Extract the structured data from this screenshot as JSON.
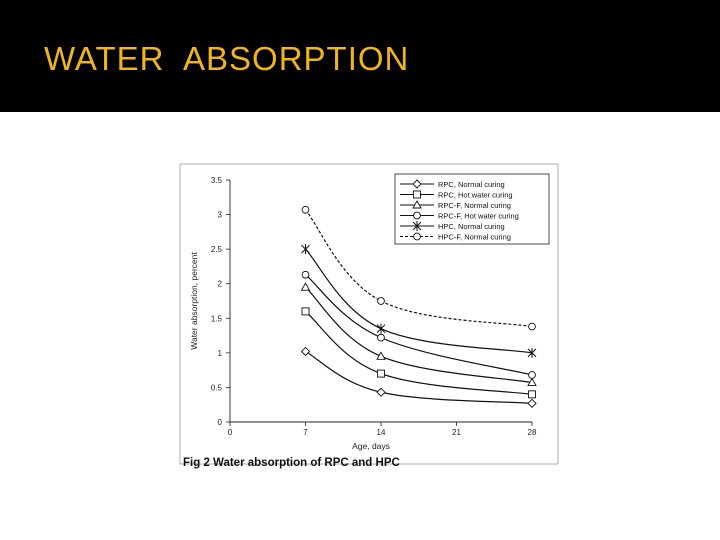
{
  "slide": {
    "title": "WATER  ABSORPTION",
    "title_color": "#f0b51b",
    "header_background": "#000000",
    "background": "#ffffff"
  },
  "figure": {
    "caption": "Fig 2 Water absorption of RPC and HPC"
  },
  "chart_data": {
    "type": "line",
    "title": "",
    "xlabel": "Age, days",
    "ylabel": "Water absorption, percent",
    "x": [
      7,
      14,
      28
    ],
    "xlim": [
      0,
      28
    ],
    "ylim": [
      0,
      3.5
    ],
    "xticks": [
      "0",
      "7",
      "14",
      "21",
      "28"
    ],
    "yticks": [
      "0",
      "0.5",
      "1",
      "1.5",
      "2",
      "2.5",
      "3",
      "3.5"
    ],
    "grid": false,
    "legend_position": "top-right",
    "series": [
      {
        "name": "RPC, Normal curing",
        "marker": "diamond",
        "dashed": false,
        "values": [
          1.02,
          0.43,
          0.27
        ]
      },
      {
        "name": "RPC, Hot water curing",
        "marker": "square",
        "dashed": false,
        "values": [
          1.6,
          0.7,
          0.4
        ]
      },
      {
        "name": "RPC-F, Normal curing",
        "marker": "triangle",
        "dashed": false,
        "values": [
          1.95,
          0.95,
          0.57
        ]
      },
      {
        "name": "RPC-F, Hot water curing",
        "marker": "circle",
        "dashed": false,
        "values": [
          2.13,
          1.22,
          0.68
        ]
      },
      {
        "name": "HPC, Normal curing",
        "marker": "star",
        "dashed": false,
        "values": [
          2.5,
          1.35,
          1.0
        ]
      },
      {
        "name": "HPC-F, Normal curing",
        "marker": "circle",
        "dashed": true,
        "values": [
          3.07,
          1.75,
          1.38
        ]
      }
    ]
  }
}
